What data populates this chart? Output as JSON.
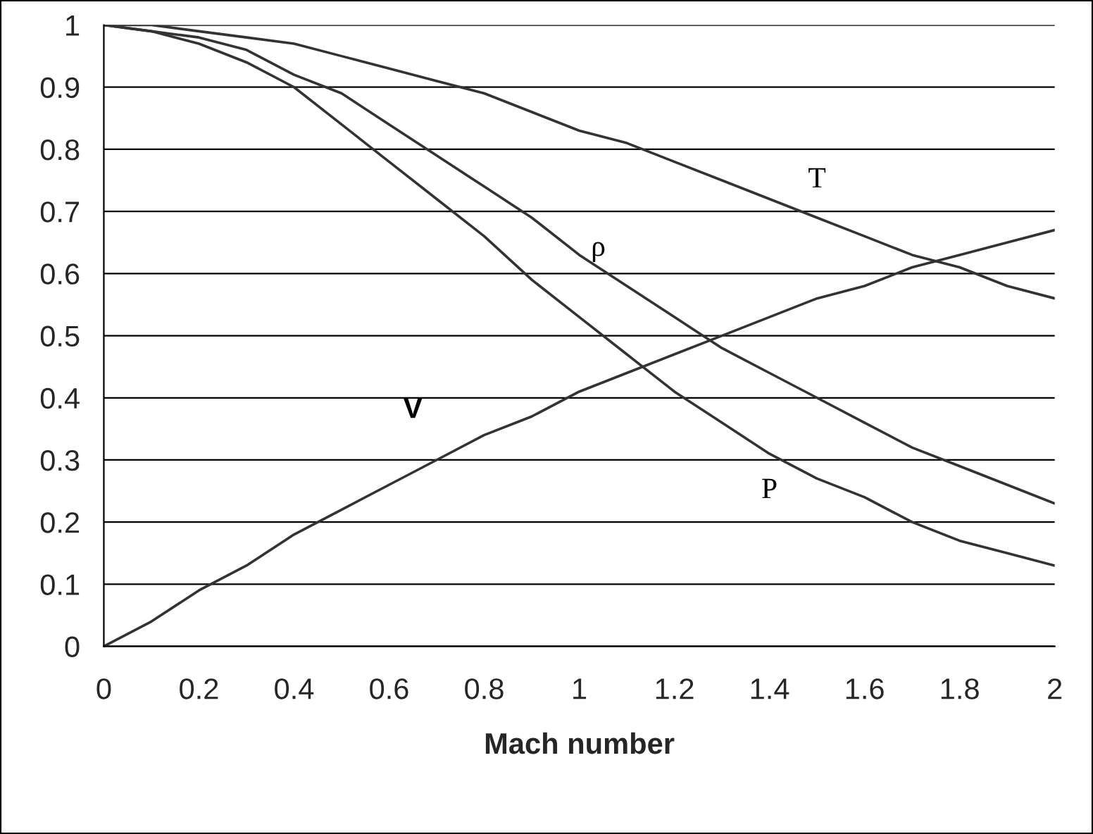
{
  "chart_data": {
    "type": "line",
    "xlabel": "Mach number",
    "x": [
      0,
      0.1,
      0.2,
      0.3,
      0.4,
      0.5,
      0.6,
      0.7,
      0.8,
      0.9,
      1.0,
      1.1,
      1.2,
      1.3,
      1.4,
      1.5,
      1.6,
      1.7,
      1.8,
      1.9,
      2.0
    ],
    "series": [
      {
        "name": "T",
        "color": "#333333",
        "values": [
          1,
          1.0,
          0.99,
          0.98,
          0.97,
          0.95,
          0.93,
          0.91,
          0.89,
          0.86,
          0.83,
          0.81,
          0.78,
          0.75,
          0.72,
          0.69,
          0.66,
          0.63,
          0.61,
          0.58,
          0.56
        ]
      },
      {
        "name": "ρ",
        "color": "#333333",
        "values": [
          1,
          0.99,
          0.98,
          0.96,
          0.92,
          0.89,
          0.84,
          0.79,
          0.74,
          0.69,
          0.63,
          0.58,
          0.53,
          0.48,
          0.44,
          0.4,
          0.36,
          0.32,
          0.29,
          0.26,
          0.23
        ]
      },
      {
        "name": "P",
        "color": "#333333",
        "values": [
          1,
          0.99,
          0.97,
          0.94,
          0.9,
          0.84,
          0.78,
          0.72,
          0.66,
          0.59,
          0.53,
          0.47,
          0.41,
          0.36,
          0.31,
          0.27,
          0.24,
          0.2,
          0.17,
          0.15,
          0.13
        ]
      },
      {
        "name": "V",
        "color": "#333333",
        "values": [
          0,
          0.04,
          0.09,
          0.13,
          0.18,
          0.22,
          0.26,
          0.3,
          0.34,
          0.37,
          0.41,
          0.44,
          0.47,
          0.5,
          0.53,
          0.56,
          0.58,
          0.61,
          0.63,
          0.65,
          0.67
        ]
      }
    ],
    "xlim": [
      0,
      2
    ],
    "xticks": [
      0,
      0.2,
      0.4,
      0.6,
      0.8,
      1,
      1.2,
      1.4,
      1.6,
      1.8,
      2
    ],
    "ylim": [
      0,
      1
    ],
    "yticks": [
      0,
      0.1,
      0.2,
      0.3,
      0.4,
      0.5,
      0.6,
      0.7,
      0.8,
      0.9,
      1
    ],
    "grid": "y",
    "marker": "none",
    "line_style": "solid",
    "legend": false
  }
}
